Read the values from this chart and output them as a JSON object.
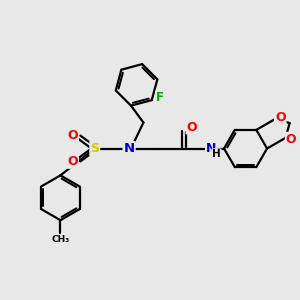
{
  "bg_color": "#e8e8e8",
  "bond_color": "#000000",
  "atom_colors": {
    "N": "#0000cc",
    "O": "#ff0000",
    "S": "#cccc00",
    "F": "#00aa00",
    "C": "#000000"
  },
  "bond_width": 1.6,
  "figsize": [
    3.0,
    3.0
  ],
  "dpi": 100
}
